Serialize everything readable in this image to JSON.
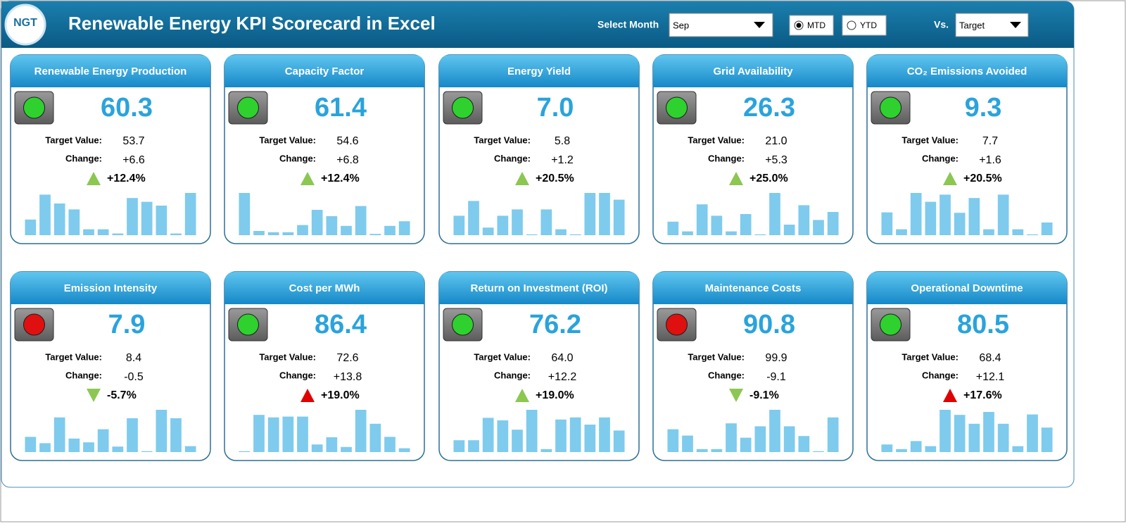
{
  "header": {
    "logo": "NGT",
    "title": "Renewable Energy KPI Scorecard in Excel",
    "month_label": "Select Month",
    "month": "Sep",
    "mtd": "MTD",
    "ytd": "YTD",
    "period_selected": "MTD",
    "vs_label": "Vs.",
    "vs": "Target"
  },
  "labels": {
    "target": "Target Value:",
    "change": "Change:"
  },
  "cards": [
    {
      "title": "Renewable Energy Production",
      "value": "60.3",
      "target": "53.7",
      "change": "+6.6",
      "percent": "+12.4%",
      "status": "#2fd12f",
      "arrow": "up",
      "arrow_color": "#8cc751",
      "bars": [
        37,
        96,
        75,
        61,
        14,
        14,
        4,
        88,
        79,
        70,
        4,
        100
      ]
    },
    {
      "title": "Capacity Factor",
      "value": "61.4",
      "target": "54.6",
      "change": "+6.8",
      "percent": "+12.4%",
      "status": "#2fd12f",
      "arrow": "up",
      "arrow_color": "#8cc751",
      "bars": [
        100,
        10,
        7,
        7,
        24,
        60,
        45,
        22,
        69,
        3,
        22,
        33
      ]
    },
    {
      "title": "Energy Yield",
      "value": "7.0",
      "target": "5.8",
      "change": "+1.2",
      "percent": "+20.5%",
      "status": "#2fd12f",
      "arrow": "up",
      "arrow_color": "#8cc751",
      "bars": [
        46,
        81,
        18,
        46,
        61,
        2,
        61,
        14,
        2,
        100,
        100,
        84
      ]
    },
    {
      "title": "Grid Availability",
      "value": "26.3",
      "target": "21.0",
      "change": "+5.3",
      "percent": "+25.0%",
      "status": "#2fd12f",
      "arrow": "up",
      "arrow_color": "#8cc751",
      "bars": [
        32,
        9,
        73,
        46,
        9,
        50,
        2,
        100,
        25,
        71,
        36,
        55
      ]
    },
    {
      "title": "CO₂ Emissions Avoided",
      "value": "9.3",
      "target": "7.7",
      "change": "+1.6",
      "percent": "+20.5%",
      "status": "#2fd12f",
      "arrow": "up",
      "arrow_color": "#8cc751",
      "bars": [
        54,
        14,
        100,
        79,
        96,
        53,
        88,
        14,
        96,
        14,
        2,
        30
      ]
    },
    {
      "title": "Emission Intensity",
      "value": "7.9",
      "target": "8.4",
      "change": "-0.5",
      "percent": "-5.7%",
      "status": "#e01010",
      "arrow": "down",
      "arrow_color": "#8cc751",
      "bars": [
        36,
        21,
        82,
        32,
        23,
        54,
        13,
        80,
        2,
        100,
        80,
        14
      ]
    },
    {
      "title": "Cost per MWh",
      "value": "86.4",
      "target": "72.6",
      "change": "+13.8",
      "percent": "+19.0%",
      "status": "#2fd12f",
      "arrow": "up",
      "arrow_color": "#e00000",
      "bars": [
        2,
        88,
        82,
        84,
        84,
        18,
        35,
        12,
        100,
        67,
        36,
        9
      ]
    },
    {
      "title": "Return on Investment (ROI)",
      "value": "76.2",
      "target": "64.0",
      "change": "+12.2",
      "percent": "+19.0%",
      "status": "#2fd12f",
      "arrow": "up",
      "arrow_color": "#8cc751",
      "bars": [
        28,
        28,
        81,
        75,
        53,
        100,
        7,
        77,
        82,
        65,
        82,
        51
      ]
    },
    {
      "title": "Maintenance Costs",
      "value": "90.8",
      "target": "99.9",
      "change": "-9.1",
      "percent": "-9.1%",
      "status": "#e01010",
      "arrow": "down",
      "arrow_color": "#8cc751",
      "bars": [
        54,
        39,
        7,
        7,
        68,
        34,
        61,
        100,
        61,
        38,
        2,
        82
      ]
    },
    {
      "title": "Operational Downtime",
      "value": "80.5",
      "target": "68.4",
      "change": "+12.1",
      "percent": "+17.6%",
      "status": "#2fd12f",
      "arrow": "up",
      "arrow_color": "#e00000",
      "bars": [
        18,
        7,
        26,
        14,
        100,
        88,
        67,
        95,
        67,
        14,
        89,
        58
      ]
    }
  ]
}
